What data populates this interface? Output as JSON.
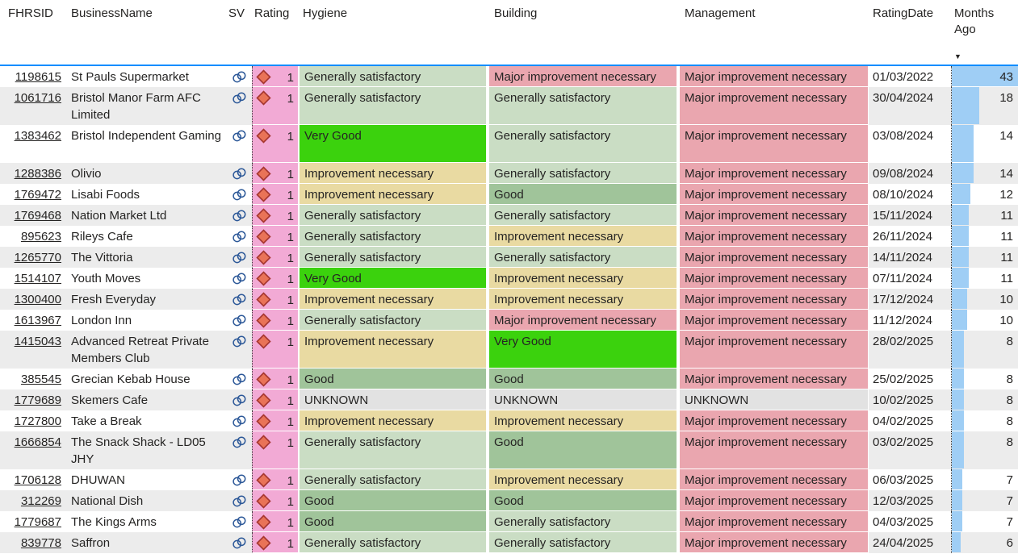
{
  "table": {
    "columns": [
      {
        "key": "fhrsid",
        "label": "FHRSID"
      },
      {
        "key": "business",
        "label": "BusinessName"
      },
      {
        "key": "sv",
        "label": "SV"
      },
      {
        "key": "rating",
        "label": "Rating"
      },
      {
        "key": "hygiene",
        "label": "Hygiene"
      },
      {
        "key": "building",
        "label": "Building"
      },
      {
        "key": "management",
        "label": "Management"
      },
      {
        "key": "date",
        "label": "RatingDate"
      },
      {
        "key": "months",
        "label": "Months Ago"
      }
    ],
    "sort": {
      "column": "Months Ago",
      "direction": "descending",
      "icon": "▼"
    },
    "months_bar_max": 43,
    "rows": [
      {
        "fhrsid": "1198615",
        "business": "St Pauls Supermarket",
        "rating": "1",
        "hygiene": "Generally satisfactory",
        "building": "Major improvement necessary",
        "management": "Major improvement necessary",
        "date": "01/03/2022",
        "months": 43,
        "tall": false
      },
      {
        "fhrsid": "1061716",
        "business": "Bristol Manor Farm AFC Limited",
        "rating": "1",
        "hygiene": "Generally satisfactory",
        "building": "Generally satisfactory",
        "management": "Major improvement necessary",
        "date": "30/04/2024",
        "months": 18,
        "tall": true
      },
      {
        "fhrsid": "1383462",
        "business": "Bristol Independent Gaming",
        "rating": "1",
        "hygiene": "Very Good",
        "building": "Generally satisfactory",
        "management": "Major improvement necessary",
        "date": "03/08/2024",
        "months": 14,
        "tall": true
      },
      {
        "fhrsid": "1288386",
        "business": "Olivio",
        "rating": "1",
        "hygiene": "Improvement necessary",
        "building": "Generally satisfactory",
        "management": "Major improvement necessary",
        "date": "09/08/2024",
        "months": 14,
        "tall": false
      },
      {
        "fhrsid": "1769472",
        "business": "Lisabi Foods",
        "rating": "1",
        "hygiene": "Improvement necessary",
        "building": "Good",
        "management": "Major improvement necessary",
        "date": "08/10/2024",
        "months": 12,
        "tall": false
      },
      {
        "fhrsid": "1769468",
        "business": "Nation Market Ltd",
        "rating": "1",
        "hygiene": "Generally satisfactory",
        "building": "Generally satisfactory",
        "management": "Major improvement necessary",
        "date": "15/11/2024",
        "months": 11,
        "tall": false
      },
      {
        "fhrsid": "895623",
        "business": "Rileys Cafe",
        "rating": "1",
        "hygiene": "Generally satisfactory",
        "building": "Improvement necessary",
        "management": "Major improvement necessary",
        "date": "26/11/2024",
        "months": 11,
        "tall": false
      },
      {
        "fhrsid": "1265770",
        "business": "The Vittoria",
        "rating": "1",
        "hygiene": "Generally satisfactory",
        "building": "Generally satisfactory",
        "management": "Major improvement necessary",
        "date": "14/11/2024",
        "months": 11,
        "tall": false
      },
      {
        "fhrsid": "1514107",
        "business": "Youth Moves",
        "rating": "1",
        "hygiene": "Very Good",
        "building": "Improvement necessary",
        "management": "Major improvement necessary",
        "date": "07/11/2024",
        "months": 11,
        "tall": false
      },
      {
        "fhrsid": "1300400",
        "business": "Fresh Everyday",
        "rating": "1",
        "hygiene": "Improvement necessary",
        "building": "Improvement necessary",
        "management": "Major improvement necessary",
        "date": "17/12/2024",
        "months": 10,
        "tall": false
      },
      {
        "fhrsid": "1613967",
        "business": "London Inn",
        "rating": "1",
        "hygiene": "Generally satisfactory",
        "building": "Major improvement necessary",
        "management": "Major improvement necessary",
        "date": "11/12/2024",
        "months": 10,
        "tall": false
      },
      {
        "fhrsid": "1415043",
        "business": "Advanced Retreat Private Members Club",
        "rating": "1",
        "hygiene": "Improvement necessary",
        "building": "Very Good",
        "management": "Major improvement necessary",
        "date": "28/02/2025",
        "months": 8,
        "tall": true
      },
      {
        "fhrsid": "385545",
        "business": "Grecian Kebab House",
        "rating": "1",
        "hygiene": "Good",
        "building": "Good",
        "management": "Major improvement necessary",
        "date": "25/02/2025",
        "months": 8,
        "tall": false
      },
      {
        "fhrsid": "1779689",
        "business": "Skemers Cafe",
        "rating": "1",
        "hygiene": "UNKNOWN",
        "building": "UNKNOWN",
        "management": "UNKNOWN",
        "date": "10/02/2025",
        "months": 8,
        "tall": false
      },
      {
        "fhrsid": "1727800",
        "business": "Take a Break",
        "rating": "1",
        "hygiene": "Improvement necessary",
        "building": "Improvement necessary",
        "management": "Major improvement necessary",
        "date": "04/02/2025",
        "months": 8,
        "tall": false
      },
      {
        "fhrsid": "1666854",
        "business": "The Snack Shack - LD05 JHY",
        "rating": "1",
        "hygiene": "Generally satisfactory",
        "building": "Good",
        "management": "Major improvement necessary",
        "date": "03/02/2025",
        "months": 8,
        "tall": true
      },
      {
        "fhrsid": "1706128",
        "business": "DHUWAN",
        "rating": "1",
        "hygiene": "Generally satisfactory",
        "building": "Improvement necessary",
        "management": "Major improvement necessary",
        "date": "06/03/2025",
        "months": 7,
        "tall": false
      },
      {
        "fhrsid": "312269",
        "business": "National Dish",
        "rating": "1",
        "hygiene": "Good",
        "building": "Good",
        "management": "Major improvement necessary",
        "date": "12/03/2025",
        "months": 7,
        "tall": false
      },
      {
        "fhrsid": "1779687",
        "business": "The Kings Arms",
        "rating": "1",
        "hygiene": "Good",
        "building": "Generally satisfactory",
        "management": "Major improvement necessary",
        "date": "04/03/2025",
        "months": 7,
        "tall": false
      },
      {
        "fhrsid": "839778",
        "business": "Saffron",
        "rating": "1",
        "hygiene": "Generally satisfactory",
        "building": "Generally satisfactory",
        "management": "Major improvement necessary",
        "date": "24/04/2025",
        "months": 6,
        "tall": false
      }
    ]
  },
  "status_colors": {
    "Very Good": "#3BD20D",
    "Good": "#A0C49A",
    "Generally satisfactory": "#CADDC4",
    "Improvement necessary": "#E9DAA2",
    "Major improvement necessary": "#EAA6AF",
    "UNKNOWN": "#E2E2E2"
  },
  "colors": {
    "header_separator": "#118DFF",
    "months_bar": "#9FCEF5",
    "rating_bg": "#F2AAD5",
    "diamond_fill": "#E97357",
    "diamond_stroke": "#A5362F",
    "link_icon": "#2C5898",
    "alt_row": "#ECECEC",
    "text": "#252423"
  },
  "icons": {
    "sv": "link-icon",
    "rating": "kpi-diamond-icon",
    "sort": "sort-descending-icon"
  }
}
